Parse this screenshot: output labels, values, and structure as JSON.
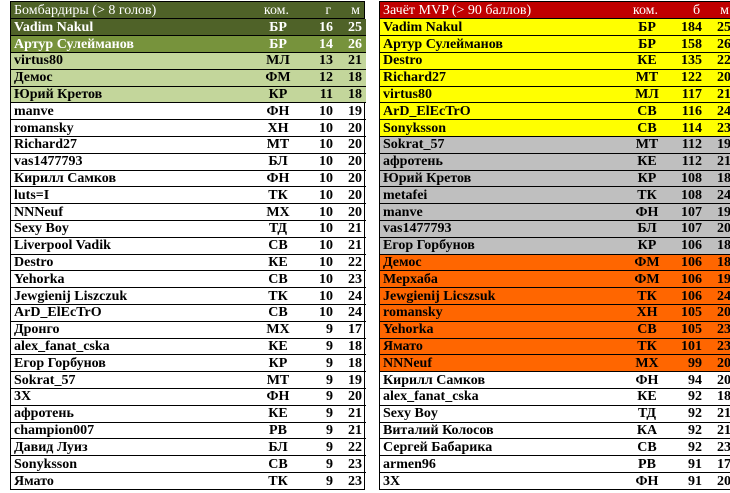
{
  "left": {
    "header": {
      "title": "Бомбардиры (> 8 голов)",
      "team": "ком.",
      "stat": "г",
      "matches": "м"
    },
    "rows": [
      {
        "name": "Vadim Nakul",
        "team": "БР",
        "stat": "16",
        "m": "25",
        "hl": "dark"
      },
      {
        "name": "Артур Сулейманов",
        "team": "БР",
        "stat": "14",
        "m": "26",
        "hl": "mid"
      },
      {
        "name": "virtus80",
        "team": "МЛ",
        "stat": "13",
        "m": "21",
        "hl": "light"
      },
      {
        "name": "Демос",
        "team": "ФМ",
        "stat": "12",
        "m": "18",
        "hl": "light"
      },
      {
        "name": "Юрий Кретов",
        "team": "КР",
        "stat": "11",
        "m": "18",
        "hl": "light"
      },
      {
        "name": "manve",
        "team": "ФН",
        "stat": "10",
        "m": "19",
        "hl": ""
      },
      {
        "name": "romansky",
        "team": "ХН",
        "stat": "10",
        "m": "20",
        "hl": ""
      },
      {
        "name": "Richard27",
        "team": "МТ",
        "stat": "10",
        "m": "20",
        "hl": ""
      },
      {
        "name": "vas1477793",
        "team": "БЛ",
        "stat": "10",
        "m": "20",
        "hl": ""
      },
      {
        "name": "Кирилл Самков",
        "team": "ФН",
        "stat": "10",
        "m": "20",
        "hl": ""
      },
      {
        "name": "luts=I",
        "team": "ТК",
        "stat": "10",
        "m": "20",
        "hl": ""
      },
      {
        "name": "NNNeuf",
        "team": "МХ",
        "stat": "10",
        "m": "20",
        "hl": ""
      },
      {
        "name": "Sexy Boy",
        "team": "ТД",
        "stat": "10",
        "m": "21",
        "hl": ""
      },
      {
        "name": "Liverpool Vadik",
        "team": "СВ",
        "stat": "10",
        "m": "21",
        "hl": ""
      },
      {
        "name": "Destro",
        "team": "КЕ",
        "stat": "10",
        "m": "22",
        "hl": ""
      },
      {
        "name": "Yehorka",
        "team": "СВ",
        "stat": "10",
        "m": "23",
        "hl": ""
      },
      {
        "name": "Jewgienij Liszczuk",
        "team": "ТК",
        "stat": "10",
        "m": "24",
        "hl": ""
      },
      {
        "name": "ArD_ElEcTrO",
        "team": "СВ",
        "stat": "10",
        "m": "24",
        "hl": ""
      },
      {
        "name": "Дронго",
        "team": "МХ",
        "stat": "9",
        "m": "17",
        "hl": ""
      },
      {
        "name": "alex_fanat_cska",
        "team": "КЕ",
        "stat": "9",
        "m": "18",
        "hl": ""
      },
      {
        "name": "Егор Горбунов",
        "team": "КР",
        "stat": "9",
        "m": "18",
        "hl": ""
      },
      {
        "name": "Sokrat_57",
        "team": "МТ",
        "stat": "9",
        "m": "19",
        "hl": ""
      },
      {
        "name": "3X",
        "team": "ФН",
        "stat": "9",
        "m": "20",
        "hl": ""
      },
      {
        "name": "афротень",
        "team": "КЕ",
        "stat": "9",
        "m": "21",
        "hl": ""
      },
      {
        "name": "champion007",
        "team": "РВ",
        "stat": "9",
        "m": "21",
        "hl": ""
      },
      {
        "name": "Давид Луиз",
        "team": "БЛ",
        "stat": "9",
        "m": "22",
        "hl": ""
      },
      {
        "name": "Sonyksson",
        "team": "СВ",
        "stat": "9",
        "m": "23",
        "hl": ""
      },
      {
        "name": "Ямато",
        "team": "ТК",
        "stat": "9",
        "m": "23",
        "hl": ""
      }
    ]
  },
  "right": {
    "header": {
      "title": "Зачёт MVP (> 90 баллов)",
      "team": "ком.",
      "stat": "б",
      "matches": "м"
    },
    "rows": [
      {
        "name": "Vadim Nakul",
        "team": "БР",
        "stat": "184",
        "m": "25",
        "hl": "yellow"
      },
      {
        "name": "Артур Сулейманов",
        "team": "БР",
        "stat": "158",
        "m": "26",
        "hl": "yellow"
      },
      {
        "name": "Destro",
        "team": "КЕ",
        "stat": "135",
        "m": "22",
        "hl": "yellow"
      },
      {
        "name": "Richard27",
        "team": "МТ",
        "stat": "122",
        "m": "20",
        "hl": "yellow"
      },
      {
        "name": "virtus80",
        "team": "МЛ",
        "stat": "117",
        "m": "21",
        "hl": "yellow"
      },
      {
        "name": "ArD_ElEcTrO",
        "team": "СВ",
        "stat": "116",
        "m": "24",
        "hl": "yellow"
      },
      {
        "name": "Sonyksson",
        "team": "СВ",
        "stat": "114",
        "m": "23",
        "hl": "yellow"
      },
      {
        "name": "Sokrat_57",
        "team": "МТ",
        "stat": "112",
        "m": "19",
        "hl": "gray"
      },
      {
        "name": "афротень",
        "team": "КЕ",
        "stat": "112",
        "m": "21",
        "hl": "gray"
      },
      {
        "name": "Юрий Кретов",
        "team": "КР",
        "stat": "108",
        "m": "18",
        "hl": "gray"
      },
      {
        "name": "metafei",
        "team": "ТК",
        "stat": "108",
        "m": "24",
        "hl": "gray"
      },
      {
        "name": "manve",
        "team": "ФН",
        "stat": "107",
        "m": "19",
        "hl": "gray"
      },
      {
        "name": "vas1477793",
        "team": "БЛ",
        "stat": "107",
        "m": "20",
        "hl": "gray"
      },
      {
        "name": "Егор Горбунов",
        "team": "КР",
        "stat": "106",
        "m": "18",
        "hl": "gray"
      },
      {
        "name": "Демос",
        "team": "ФМ",
        "stat": "106",
        "m": "18",
        "hl": "orange"
      },
      {
        "name": "Мерхаба",
        "team": "ФМ",
        "stat": "106",
        "m": "19",
        "hl": "orange"
      },
      {
        "name": "Jewgienij Licszsuk",
        "team": "ТК",
        "stat": "106",
        "m": "24",
        "hl": "orange"
      },
      {
        "name": "romansky",
        "team": "ХН",
        "stat": "105",
        "m": "20",
        "hl": "orange"
      },
      {
        "name": "Yehorka",
        "team": "СВ",
        "stat": "105",
        "m": "23",
        "hl": "orange"
      },
      {
        "name": "Ямато",
        "team": "ТК",
        "stat": "101",
        "m": "23",
        "hl": "orange"
      },
      {
        "name": "NNNeuf",
        "team": "МХ",
        "stat": "99",
        "m": "20",
        "hl": "orange"
      },
      {
        "name": "Кирилл Самков",
        "team": "ФН",
        "stat": "94",
        "m": "20",
        "hl": ""
      },
      {
        "name": "alex_fanat_cska",
        "team": "КЕ",
        "stat": "92",
        "m": "18",
        "hl": ""
      },
      {
        "name": "Sexy Boy",
        "team": "ТД",
        "stat": "92",
        "m": "21",
        "hl": ""
      },
      {
        "name": "Виталий Колосов",
        "team": "КА",
        "stat": "92",
        "m": "21",
        "hl": ""
      },
      {
        "name": "Сергей Бабарика",
        "team": "СВ",
        "stat": "92",
        "m": "23",
        "hl": ""
      },
      {
        "name": "armen96",
        "team": "РВ",
        "stat": "91",
        "m": "17",
        "hl": ""
      },
      {
        "name": "3X",
        "team": "ФН",
        "stat": "91",
        "m": "20",
        "hl": ""
      }
    ]
  }
}
